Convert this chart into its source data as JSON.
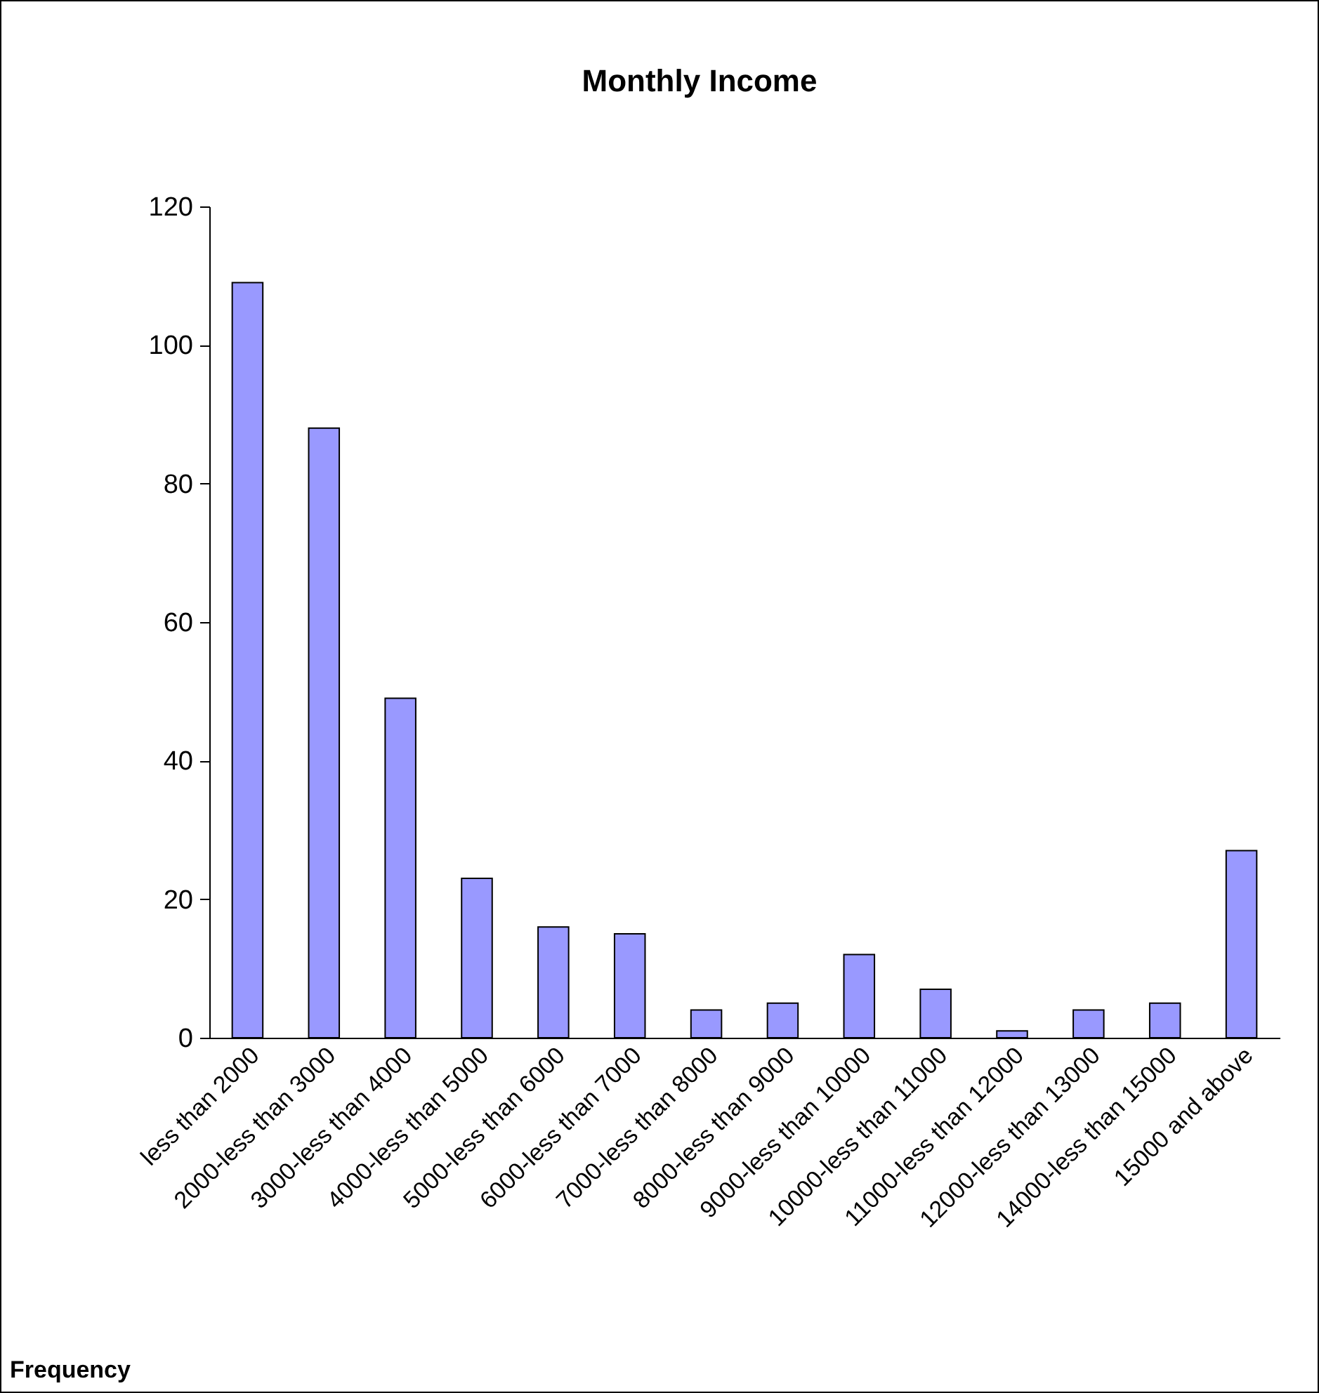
{
  "chart_data": {
    "type": "bar",
    "title": "Monthly Income",
    "annotations": [
      "Frequency"
    ],
    "categories": [
      "less than 2000",
      "2000-less than 3000",
      "3000-less than 4000",
      "4000-less than 5000",
      "5000-less than 6000",
      "6000-less than 7000",
      "7000-less than 8000",
      "8000-less than 9000",
      "9000-less than 10000",
      "10000-less than 11000",
      "11000-less than 12000",
      "12000-less than 13000",
      "14000-less than 15000",
      "15000 and above"
    ],
    "values": [
      109,
      88,
      49,
      23,
      16,
      15,
      4,
      5,
      12,
      7,
      1,
      4,
      5,
      27
    ],
    "color": "#9999ff",
    "ylim": [
      0,
      120
    ],
    "yticks": [
      0,
      20,
      40,
      60,
      80,
      100,
      120
    ],
    "grid": false
  }
}
